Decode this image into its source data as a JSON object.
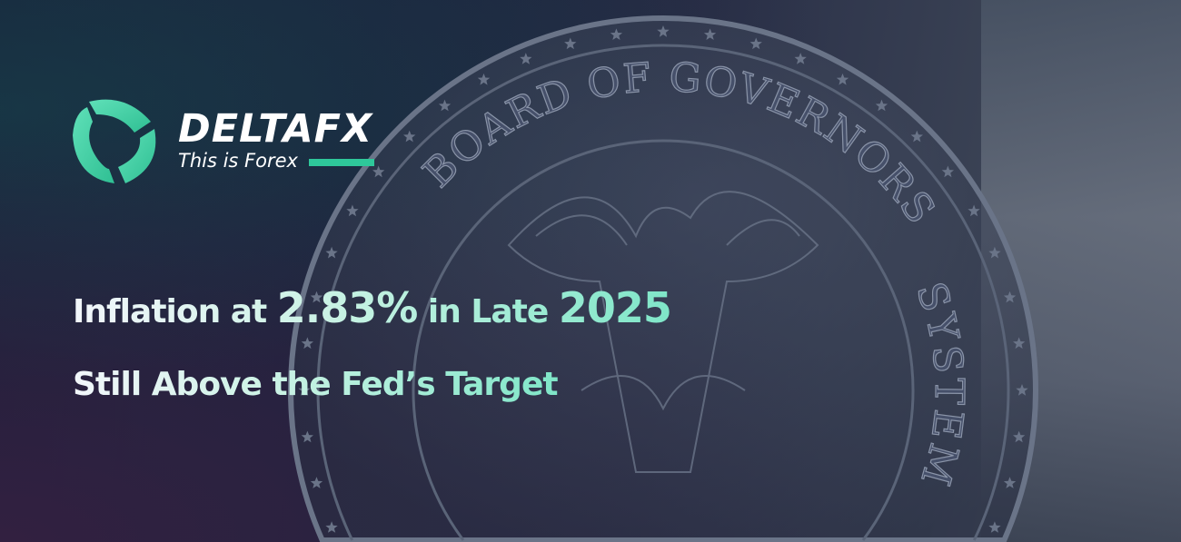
{
  "brand": {
    "name": "DELTAFX",
    "tagline": "This is Forex",
    "accent": "#2ec79a"
  },
  "headline": {
    "line1": {
      "part1": "Inflation at ",
      "value": "2.83%",
      "part2": " in Late ",
      "year": "2025"
    },
    "line2": "Still Above the Fed’s Target"
  },
  "seal": {
    "top_text": "BOARD OF GOVERNORS",
    "side_text": "SYSTEM"
  },
  "colors": {
    "text_gradient_start": "#f2f6fb",
    "text_gradient_end": "#7fe6c8"
  }
}
